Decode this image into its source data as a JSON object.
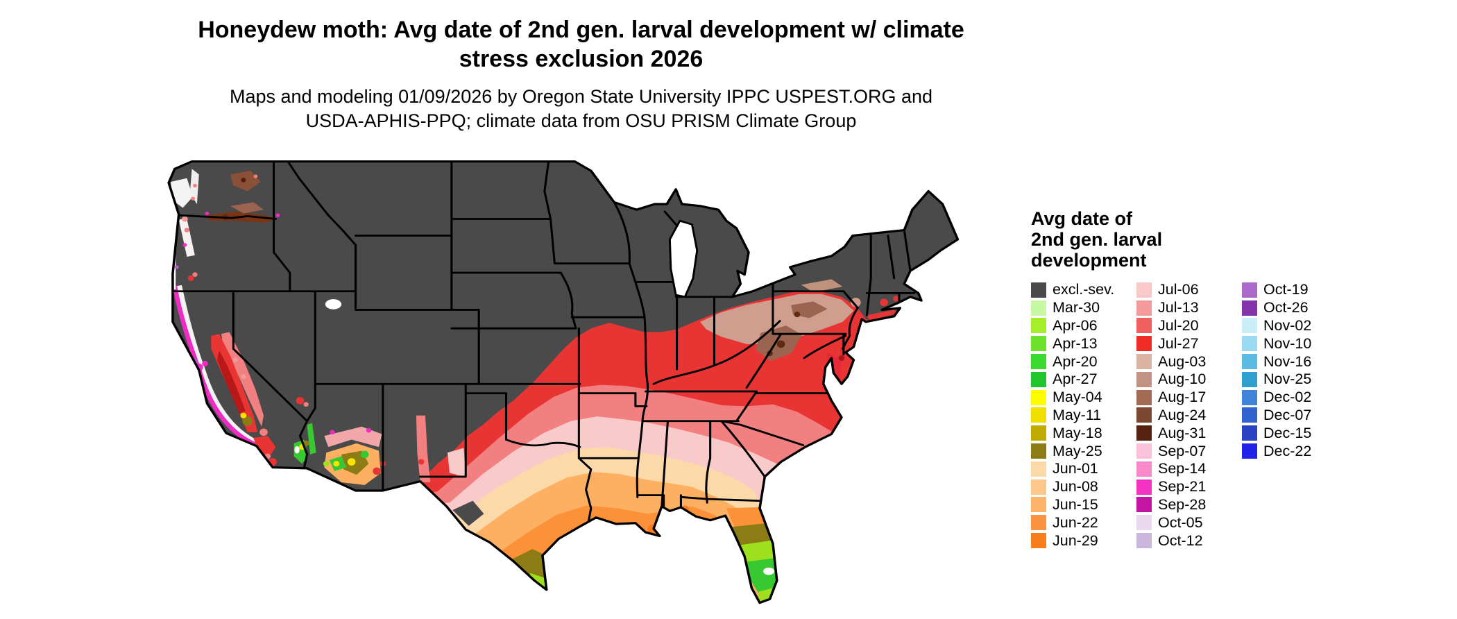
{
  "title": {
    "line1": "Honeydew moth: Avg date of 2nd gen. larval development w/ climate",
    "line2": "stress exclusion 2026"
  },
  "subtitle": {
    "line1": "Maps and modeling 01/09/2026 by Oregon State University IPPC USPEST.ORG and",
    "line2": "USDA-APHIS-PPQ; climate data from OSU PRISM Climate Group"
  },
  "legend": {
    "title_lines": [
      "Avg date of",
      "2nd gen. larval",
      "development"
    ],
    "columns": [
      {
        "items": [
          {
            "label": "excl.-sev.",
            "color": "#4a4a4a"
          },
          {
            "label": "Mar-30",
            "color": "#c6f7a2"
          },
          {
            "label": "Apr-06",
            "color": "#a4ef29"
          },
          {
            "label": "Apr-13",
            "color": "#6ce32a"
          },
          {
            "label": "Apr-20",
            "color": "#3bd92e"
          },
          {
            "label": "Apr-27",
            "color": "#22c52e"
          },
          {
            "label": "May-04",
            "color": "#fdfd00"
          },
          {
            "label": "May-11",
            "color": "#f0df00"
          },
          {
            "label": "May-18",
            "color": "#c1ab00"
          },
          {
            "label": "May-25",
            "color": "#8c7c14"
          },
          {
            "label": "Jun-01",
            "color": "#fcd9a9"
          },
          {
            "label": "Jun-08",
            "color": "#fdc789"
          },
          {
            "label": "Jun-15",
            "color": "#fdb369"
          },
          {
            "label": "Jun-22",
            "color": "#fb9341"
          },
          {
            "label": "Jun-29",
            "color": "#f87d1d"
          }
        ]
      },
      {
        "items": [
          {
            "label": "Jul-06",
            "color": "#f9c9c9"
          },
          {
            "label": "Jul-13",
            "color": "#f59a9a"
          },
          {
            "label": "Jul-20",
            "color": "#f25f5f"
          },
          {
            "label": "Jul-27",
            "color": "#ee2c24"
          },
          {
            "label": "Aug-03",
            "color": "#dcb4a4"
          },
          {
            "label": "Aug-10",
            "color": "#c29282"
          },
          {
            "label": "Aug-17",
            "color": "#a36b54"
          },
          {
            "label": "Aug-24",
            "color": "#7d4832"
          },
          {
            "label": "Aug-31",
            "color": "#54220e"
          },
          {
            "label": "Sep-07",
            "color": "#f9c2da"
          },
          {
            "label": "Sep-14",
            "color": "#f98aca"
          },
          {
            "label": "Sep-21",
            "color": "#f233c3"
          },
          {
            "label": "Sep-28",
            "color": "#c315a3"
          },
          {
            "label": "Oct-05",
            "color": "#ead9ee"
          },
          {
            "label": "Oct-12",
            "color": "#cab5dd"
          }
        ]
      },
      {
        "items": [
          {
            "label": "Oct-19",
            "color": "#ab6aca"
          },
          {
            "label": "Oct-26",
            "color": "#8334ab"
          },
          {
            "label": "Nov-02",
            "color": "#c9edf9"
          },
          {
            "label": "Nov-10",
            "color": "#9bdaf1"
          },
          {
            "label": "Nov-16",
            "color": "#5cbbe2"
          },
          {
            "label": "Nov-25",
            "color": "#2f9fd0"
          },
          {
            "label": "Dec-02",
            "color": "#3f83da"
          },
          {
            "label": "Dec-07",
            "color": "#3263cd"
          },
          {
            "label": "Dec-15",
            "color": "#2a43c2"
          },
          {
            "label": "Dec-22",
            "color": "#2222ea"
          }
        ]
      }
    ]
  },
  "map": {
    "type": "choropleth-map",
    "ocean_color": "#ffffff",
    "excluded_fill": "#4a4a4a",
    "border_color": "#000000"
  }
}
